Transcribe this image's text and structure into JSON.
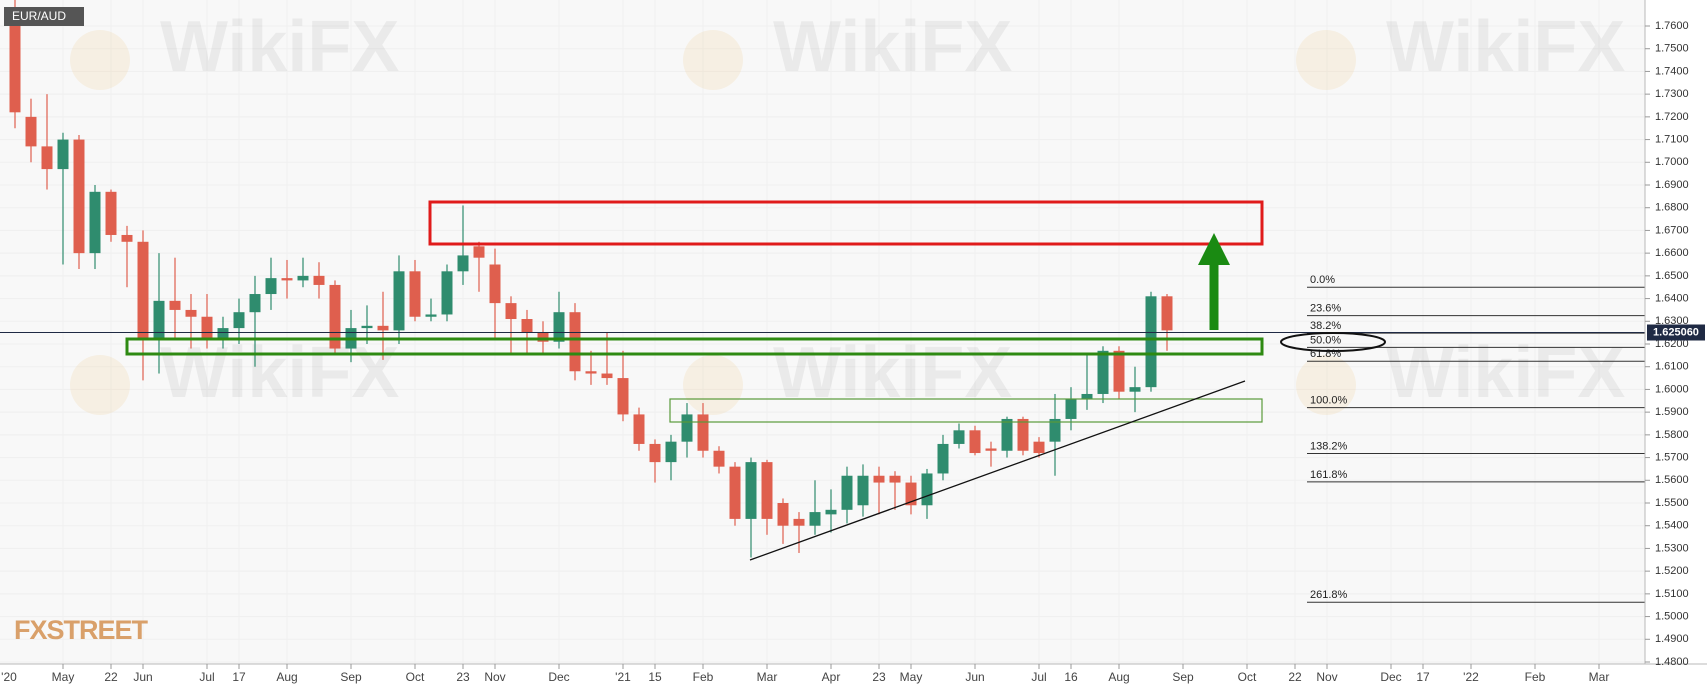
{
  "chart_data": {
    "type": "candlestick",
    "symbol": "EUR/AUD",
    "watermark": "WikiFX",
    "logo": "FXSTREET",
    "up_color": "#2f8c6e",
    "down_color": "#df5f4e",
    "grid": true,
    "categories": [
      "'20",
      null,
      null,
      null,
      "May",
      null,
      null,
      "22",
      null,
      "Jun",
      null,
      null,
      null,
      "Jul",
      null,
      "17",
      null,
      null,
      "Aug",
      null,
      null,
      null,
      "Sep",
      null,
      null,
      null,
      "Oct",
      null,
      null,
      "23",
      null,
      "Nov",
      null,
      null,
      null,
      "Dec",
      null,
      null,
      null,
      "'21",
      null,
      "15",
      null,
      null,
      "Feb",
      null,
      null,
      null,
      "Mar",
      null,
      null,
      null,
      "Apr",
      null,
      null,
      "23",
      null,
      "May",
      null,
      null,
      null,
      "Jun",
      null,
      null,
      null,
      "Jul",
      null,
      "16",
      null,
      null,
      "Aug",
      null,
      null,
      null,
      "Sep",
      null,
      null,
      null,
      "Oct",
      null,
      null,
      "22",
      null,
      "Nov",
      null,
      null,
      null,
      "Dec",
      null,
      "17",
      null,
      null,
      "'22",
      null,
      null,
      null,
      "Feb",
      null,
      null,
      null,
      "Mar"
    ],
    "open": [
      null,
      1.765,
      1.72,
      1.707,
      1.697,
      1.71,
      1.66,
      1.687,
      1.668,
      1.665,
      1.622,
      1.639,
      1.635,
      1.632,
      1.622,
      1.627,
      1.634,
      1.642,
      1.649,
      1.648,
      1.65,
      1.646,
      1.618,
      1.627,
      1.628,
      1.626,
      1.652,
      1.632,
      1.633,
      1.652,
      1.663,
      1.655,
      1.638,
      1.631,
      1.625,
      1.621,
      1.634,
      1.608,
      1.607,
      1.605,
      1.589,
      1.576,
      1.568,
      1.577,
      1.589,
      1.573,
      1.566,
      1.543,
      1.568,
      1.55,
      1.543,
      1.54,
      1.545,
      1.547,
      1.549,
      1.562,
      1.562,
      1.559,
      1.549,
      1.563,
      1.576,
      1.582,
      1.574,
      1.573,
      1.587,
      1.577,
      1.577,
      1.587,
      1.596,
      1.598,
      1.617,
      1.599,
      1.601,
      1.641,
      null,
      null,
      null,
      null,
      null,
      null,
      null,
      null,
      null,
      null,
      null,
      null,
      null,
      null,
      null,
      null,
      null,
      null,
      null,
      null,
      null,
      null,
      null,
      null,
      null,
      null,
      null
    ],
    "high": [
      null,
      1.775,
      1.728,
      1.73,
      1.713,
      1.712,
      1.69,
      1.688,
      1.672,
      1.67,
      1.66,
      1.658,
      1.642,
      1.642,
      1.632,
      1.64,
      1.65,
      1.658,
      1.657,
      1.658,
      1.656,
      1.648,
      1.635,
      1.637,
      1.643,
      1.659,
      1.657,
      1.64,
      1.655,
      1.681,
      1.665,
      1.662,
      1.641,
      1.635,
      1.63,
      1.643,
      1.638,
      1.617,
      1.625,
      1.617,
      1.592,
      1.578,
      1.58,
      1.594,
      1.594,
      1.575,
      1.568,
      1.57,
      1.569,
      1.552,
      1.546,
      1.56,
      1.556,
      1.566,
      1.567,
      1.566,
      1.564,
      1.562,
      1.565,
      1.58,
      1.585,
      1.584,
      1.577,
      1.588,
      1.588,
      1.579,
      1.598,
      1.601,
      1.616,
      1.619,
      1.619,
      1.61,
      1.643,
      1.642,
      null,
      null,
      null,
      null,
      null,
      null,
      null,
      null,
      null,
      null,
      null,
      null,
      null,
      null,
      null,
      null,
      null,
      null,
      null,
      null,
      null,
      null,
      null,
      null,
      null,
      null,
      null
    ],
    "low": [
      null,
      1.715,
      1.7,
      1.688,
      1.655,
      1.653,
      1.653,
      1.665,
      1.645,
      1.604,
      1.607,
      1.622,
      1.618,
      1.618,
      1.618,
      1.62,
      1.61,
      1.635,
      1.64,
      1.645,
      1.64,
      1.615,
      1.612,
      1.62,
      1.613,
      1.62,
      1.63,
      1.63,
      1.63,
      1.646,
      1.643,
      1.622,
      1.615,
      1.615,
      1.615,
      1.618,
      1.604,
      1.602,
      1.602,
      1.586,
      1.573,
      1.559,
      1.56,
      1.57,
      1.57,
      1.563,
      1.54,
      1.526,
      1.536,
      1.532,
      1.528,
      1.536,
      1.537,
      1.541,
      1.544,
      1.545,
      1.547,
      1.545,
      1.543,
      1.56,
      1.574,
      1.571,
      1.566,
      1.57,
      1.571,
      1.57,
      1.562,
      1.582,
      1.591,
      1.594,
      1.596,
      1.59,
      1.599,
      1.617,
      null,
      null,
      null,
      null,
      null,
      null,
      null,
      null,
      null,
      null,
      null,
      null,
      null,
      null,
      null,
      null,
      null,
      null,
      null,
      null,
      null,
      null,
      null,
      null,
      null,
      null,
      null
    ],
    "close": [
      null,
      1.722,
      1.707,
      1.697,
      1.71,
      1.66,
      1.687,
      1.668,
      1.665,
      1.622,
      1.639,
      1.635,
      1.632,
      1.622,
      1.627,
      1.634,
      1.642,
      1.649,
      1.648,
      1.65,
      1.646,
      1.618,
      1.627,
      1.628,
      1.626,
      1.652,
      1.632,
      1.633,
      1.652,
      1.659,
      1.658,
      1.638,
      1.631,
      1.625,
      1.621,
      1.634,
      1.608,
      1.607,
      1.605,
      1.589,
      1.576,
      1.568,
      1.577,
      1.589,
      1.573,
      1.566,
      1.543,
      1.568,
      1.543,
      1.54,
      1.54,
      1.546,
      1.547,
      1.562,
      1.562,
      1.559,
      1.559,
      1.549,
      1.563,
      1.576,
      1.582,
      1.572,
      1.573,
      1.587,
      1.573,
      1.572,
      1.587,
      1.596,
      1.598,
      1.617,
      1.599,
      1.601,
      1.641,
      1.626,
      null,
      null,
      null,
      null,
      null,
      null,
      null,
      null,
      null,
      null,
      null,
      null,
      null,
      null,
      null,
      null,
      null,
      null,
      null,
      null,
      null,
      null,
      null,
      null,
      null,
      null,
      null
    ],
    "ylim": [
      1.48,
      1.76
    ],
    "yticks": [
      {
        "value": 1.48,
        "label": "1.4800"
      },
      {
        "value": 1.49,
        "label": "1.4900"
      },
      {
        "value": 1.5,
        "label": "1.5000"
      },
      {
        "value": 1.51,
        "label": "1.5100"
      },
      {
        "value": 1.52,
        "label": "1.5200"
      },
      {
        "value": 1.53,
        "label": "1.5300"
      },
      {
        "value": 1.54,
        "label": "1.5400"
      },
      {
        "value": 1.55,
        "label": "1.5500"
      },
      {
        "value": 1.56,
        "label": "1.5600"
      },
      {
        "value": 1.57,
        "label": "1.5700"
      },
      {
        "value": 1.58,
        "label": "1.5800"
      },
      {
        "value": 1.59,
        "label": "1.5900"
      },
      {
        "value": 1.6,
        "label": "1.6000"
      },
      {
        "value": 1.61,
        "label": "1.6100"
      },
      {
        "value": 1.62,
        "label": "1.6200"
      },
      {
        "value": 1.63,
        "label": "1.6300"
      },
      {
        "value": 1.64,
        "label": "1.6400"
      },
      {
        "value": 1.65,
        "label": "1.6500"
      },
      {
        "value": 1.66,
        "label": "1.6600"
      },
      {
        "value": 1.67,
        "label": "1.6700"
      },
      {
        "value": 1.68,
        "label": "1.6800"
      },
      {
        "value": 1.69,
        "label": "1.6900"
      },
      {
        "value": 1.7,
        "label": "1.7000"
      },
      {
        "value": 1.71,
        "label": "1.7100"
      },
      {
        "value": 1.72,
        "label": "1.7200"
      },
      {
        "value": 1.73,
        "label": "1.7300"
      },
      {
        "value": 1.74,
        "label": "1.7400"
      },
      {
        "value": 1.75,
        "label": "1.7500"
      },
      {
        "value": 1.76,
        "label": "1.7600"
      }
    ],
    "last_price": {
      "value": 1.62506,
      "label": "1.625060"
    },
    "fib_levels": [
      {
        "label": "0.0%",
        "price": 1.645
      },
      {
        "label": "23.6%",
        "price": 1.6325
      },
      {
        "label": "38.2%",
        "price": 1.6248
      },
      {
        "label": "50.0%",
        "price": 1.6185
      },
      {
        "label": "61.8%",
        "price": 1.6124
      },
      {
        "label": "100.0%",
        "price": 1.592
      },
      {
        "label": "138.2%",
        "price": 1.5718
      },
      {
        "label": "161.8%",
        "price": 1.5593
      },
      {
        "label": "261.8%",
        "price": 1.5063
      }
    ]
  }
}
